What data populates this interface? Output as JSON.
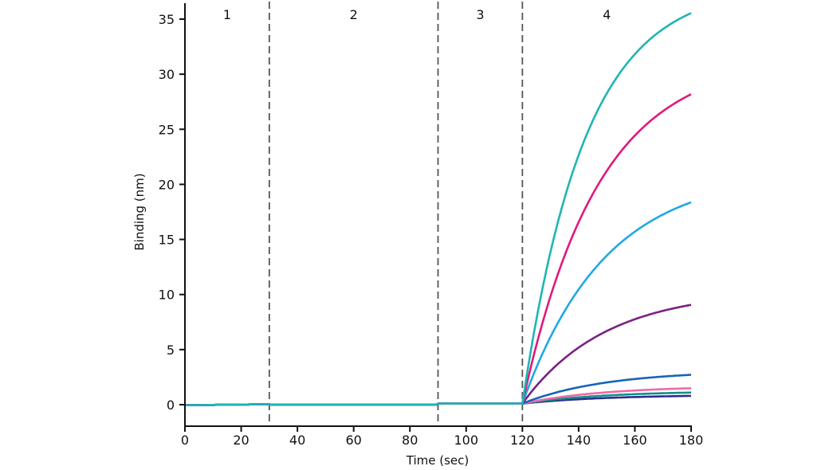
{
  "chart_data": {
    "type": "line",
    "title": "",
    "xlabel": "Time (sec)",
    "ylabel": "Binding (nm)",
    "xlim": [
      0,
      180
    ],
    "ylim": [
      -2,
      36
    ],
    "x_ticks": [
      0,
      20,
      40,
      60,
      80,
      100,
      120,
      140,
      160,
      180
    ],
    "y_ticks": [
      0,
      5,
      10,
      15,
      20,
      25,
      30,
      35
    ],
    "grid": false,
    "legend": null,
    "regions": [
      {
        "label": "1",
        "start": 0,
        "end": 30
      },
      {
        "label": "2",
        "start": 30,
        "end": 90
      },
      {
        "label": "3",
        "start": 90,
        "end": 120
      },
      {
        "label": "4",
        "start": 120,
        "end": 180
      }
    ],
    "region_dividers": [
      30,
      90,
      120
    ],
    "association_start": 120,
    "series": [
      {
        "name": "series-teal",
        "color": "#1fb5b3",
        "baseline": 0.0,
        "step3": 0.1,
        "plateau": 38.0,
        "k": 0.045,
        "end_value": 35.0
      },
      {
        "name": "series-magenta",
        "color": "#e0197d",
        "baseline": 0.0,
        "step3": 0.1,
        "plateau": 31.5,
        "k": 0.037,
        "end_value": 28.0
      },
      {
        "name": "series-sky-blue",
        "color": "#1fa9e1",
        "baseline": 0.0,
        "step3": 0.1,
        "plateau": 21.0,
        "k": 0.034,
        "end_value": 18.2
      },
      {
        "name": "series-purple",
        "color": "#7b2182",
        "baseline": 0.0,
        "step3": 0.1,
        "plateau": 10.3,
        "k": 0.034,
        "end_value": 8.9
      },
      {
        "name": "series-blue",
        "color": "#1565b8",
        "baseline": 0.0,
        "step3": 0.1,
        "plateau": 3.0,
        "k": 0.034,
        "end_value": 2.6
      },
      {
        "name": "series-pink",
        "color": "#ee6aa7",
        "baseline": 0.0,
        "step3": 0.1,
        "plateau": 1.6,
        "k": 0.034,
        "end_value": 1.4
      },
      {
        "name": "series-green",
        "color": "#138f8a",
        "baseline": 0.0,
        "step3": 0.1,
        "plateau": 1.15,
        "k": 0.034,
        "end_value": 1.0
      },
      {
        "name": "series-navy",
        "color": "#2c2d8c",
        "baseline": 0.0,
        "step3": 0.1,
        "plateau": 0.8,
        "k": 0.034,
        "end_value": 0.7
      }
    ]
  }
}
